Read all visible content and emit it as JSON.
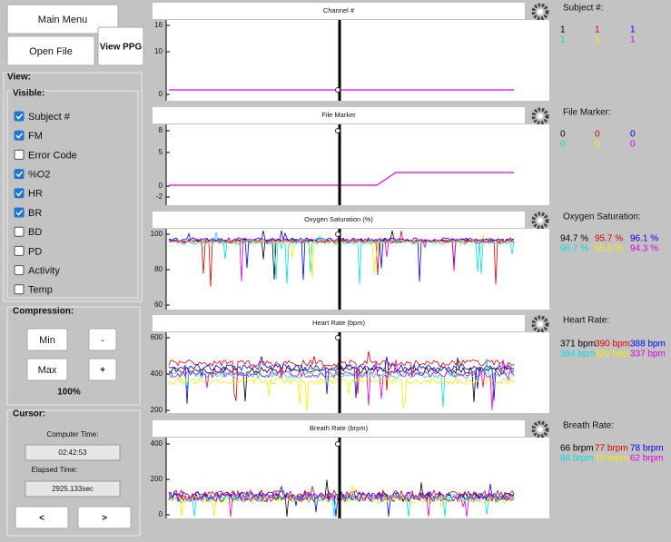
{
  "buttons": {
    "main_menu": "Main Menu",
    "open_file": "Open File",
    "view_ppg": "View PPG"
  },
  "view": {
    "title": "View:",
    "visible": {
      "title": "Visible:",
      "items": [
        {
          "label": "Subject #",
          "checked": true
        },
        {
          "label": "FM",
          "checked": true
        },
        {
          "label": "Error Code",
          "checked": false
        },
        {
          "label": "%O2",
          "checked": true
        },
        {
          "label": "HR",
          "checked": true
        },
        {
          "label": "BR",
          "checked": true
        },
        {
          "label": "BD",
          "checked": false
        },
        {
          "label": "PD",
          "checked": false
        },
        {
          "label": "Activity",
          "checked": false
        },
        {
          "label": "Temp",
          "checked": false
        }
      ]
    }
  },
  "compression": {
    "title": "Compression:",
    "min": "Min",
    "minus": "-",
    "max": "Max",
    "plus": "+",
    "level": "100%"
  },
  "cursor": {
    "title": "Cursor:",
    "computer_time_label": "Computer Time:",
    "computer_time": "02:42:53",
    "elapsed_label": "Elapsed Time:",
    "elapsed": "2925.133sec",
    "prev": "<",
    "next": ">"
  },
  "plots": [
    {
      "title": "Channel #",
      "yticks": [
        16,
        10,
        0
      ],
      "readout_title": "Subject #:",
      "readouts": [
        "1",
        "1",
        "1",
        "1",
        "1",
        "1"
      ]
    },
    {
      "title": "File Marker",
      "yticks": [
        8,
        5,
        0,
        -2
      ],
      "readout_title": "File Marker:",
      "readouts": [
        "0",
        "0",
        "0",
        "0",
        "0",
        "0"
      ]
    },
    {
      "title": "Oxygen Saturation (%)",
      "yticks": [
        100,
        80,
        60
      ],
      "readout_title": "Oxygen Saturation:",
      "readouts": [
        "94.7 %",
        "95.7 %",
        "96.1 %",
        "96.7 %",
        "95.5 %",
        "94.3 %"
      ]
    },
    {
      "title": "Heart Rate (bpm)",
      "yticks": [
        600,
        400,
        200
      ],
      "readout_title": "Heart Rate:",
      "readouts": [
        "371 bpm",
        "390 bpm",
        "388 bpm",
        "394 bpm",
        "320 bpm",
        "337 bpm"
      ]
    },
    {
      "title": "Breath Rate (brpm)",
      "yticks": [
        400,
        200,
        0
      ],
      "readout_title": "Breath Rate:",
      "readouts": [
        "66 brpm",
        "77 brpm",
        "78 brpm",
        "86 brpm",
        "79 brpm",
        "62 brpm"
      ]
    }
  ]
}
